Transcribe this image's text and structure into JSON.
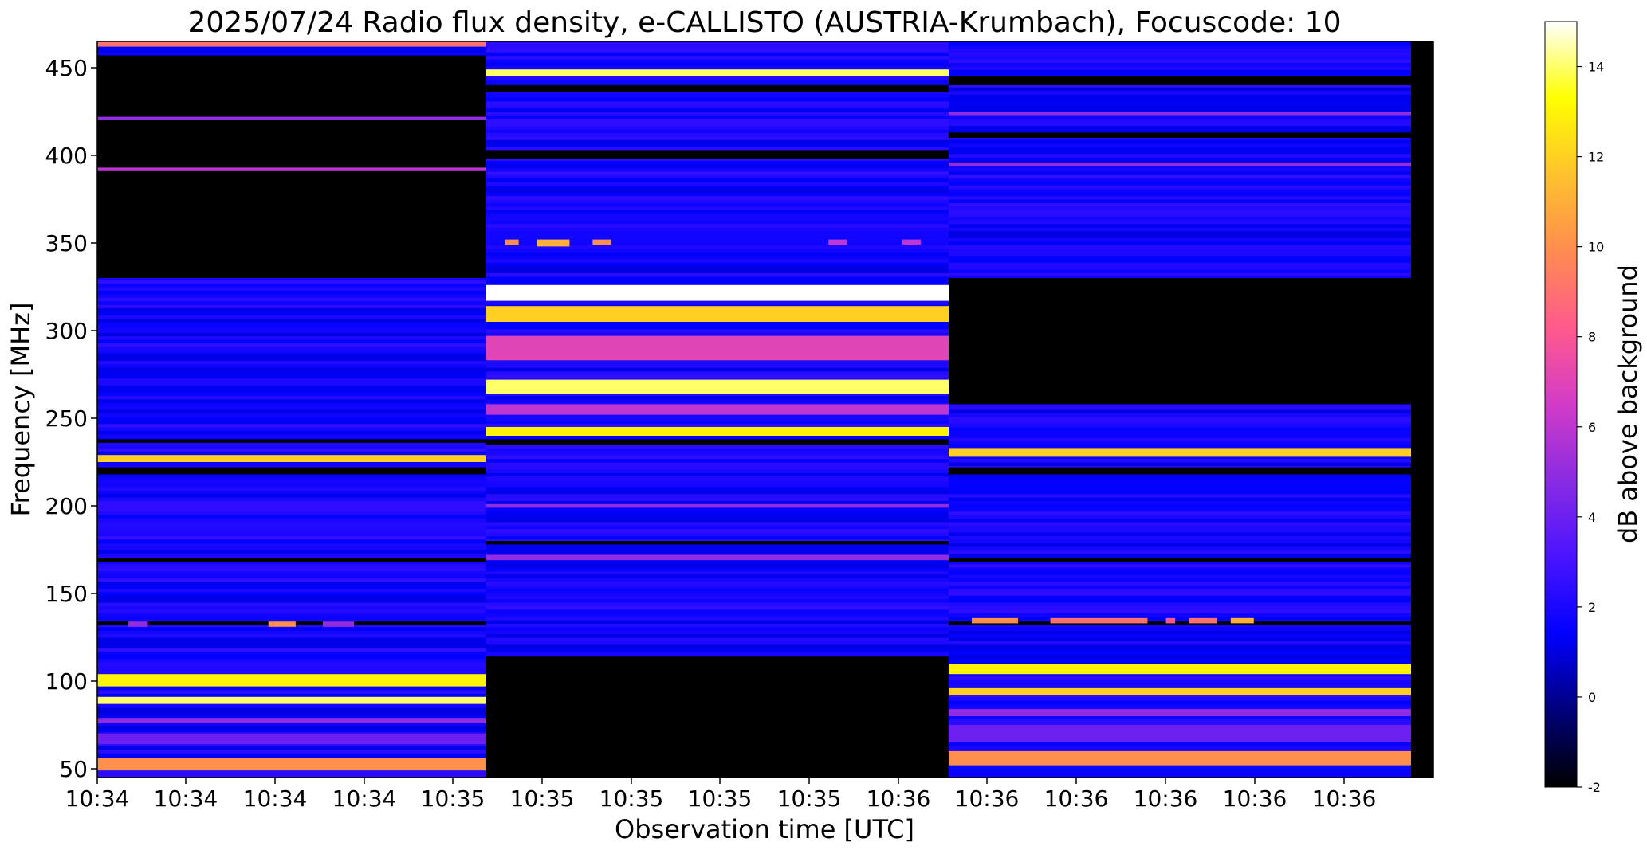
{
  "chart_data": {
    "type": "heatmap",
    "title": "2025/07/24  Radio flux density, e-CALLISTO (AUSTRIA-Krumbach), Focuscode: 10",
    "xlabel": "Observation time [UTC]",
    "ylabel": "Frequency [MHz]",
    "ylim": [
      45,
      465
    ],
    "yticks": [
      50,
      100,
      150,
      200,
      250,
      300,
      350,
      400,
      450
    ],
    "xtick_labels": [
      "10:34",
      "10:34",
      "10:34",
      "10:34",
      "10:35",
      "10:35",
      "10:35",
      "10:35",
      "10:35",
      "10:36",
      "10:36",
      "10:36",
      "10:36",
      "10:36",
      "10:36"
    ],
    "colorbar": {
      "label": "dB above background",
      "range": [
        -2,
        15
      ],
      "ticks": [
        -2,
        0,
        2,
        4,
        6,
        8,
        10,
        12,
        14
      ],
      "colormap": "gnuplot2",
      "stops": [
        "#000000",
        "#00007a",
        "#0000ff",
        "#4a14ff",
        "#8a2be2",
        "#d23cc8",
        "#ff5a8c",
        "#ff8c50",
        "#ffc22e",
        "#ffff00",
        "#ffffff"
      ]
    },
    "panels": [
      {
        "dark_bands": [
          [
            330,
            457
          ],
          [
            447,
            450
          ],
          [
            236,
            238
          ],
          [
            218,
            222
          ],
          [
            168,
            170
          ],
          [
            132,
            134
          ]
        ],
        "bright_bands": [
          {
            "freq": [
              97,
              104
            ],
            "db": 13
          },
          {
            "freq": [
              87,
              91
            ],
            "db": 14
          },
          {
            "freq": [
              49,
              56
            ],
            "db": 10
          },
          {
            "freq": [
              225,
              229
            ],
            "db": 12
          },
          {
            "freq": [
              462,
              465
            ],
            "db": 9
          },
          {
            "freq": [
              420,
              422
            ],
            "db": 5
          },
          {
            "freq": [
              391,
              393
            ],
            "db": 6
          },
          {
            "freq": [
              76,
              79
            ],
            "db": 5
          },
          {
            "freq": [
              64,
              70
            ],
            "db": 4
          }
        ]
      },
      {
        "dark_bands": [
          [
            45,
            114
          ],
          [
            398,
            403
          ],
          [
            436,
            440
          ],
          [
            178,
            180
          ],
          [
            235,
            238
          ]
        ],
        "bright_bands": [
          {
            "freq": [
              317,
              326
            ],
            "db": 15
          },
          {
            "freq": [
              305,
              314
            ],
            "db": 12
          },
          {
            "freq": [
              264,
              272
            ],
            "db": 14
          },
          {
            "freq": [
              240,
              245
            ],
            "db": 13
          },
          {
            "freq": [
              445,
              449
            ],
            "db": 14
          },
          {
            "freq": [
              283,
              297
            ],
            "db": 7
          },
          {
            "freq": [
              252,
              258
            ],
            "db": 6
          },
          {
            "freq": [
              199,
              201
            ],
            "db": 5
          },
          {
            "freq": [
              169,
              172
            ],
            "db": 5
          }
        ]
      },
      {
        "dark_bands": [
          [
            258,
            330
          ],
          [
            410,
            413
          ],
          [
            440,
            445
          ],
          [
            218,
            222
          ],
          [
            168,
            170
          ],
          [
            132,
            134
          ]
        ],
        "bright_bands": [
          {
            "freq": [
              104,
              110
            ],
            "db": 13
          },
          {
            "freq": [
              92,
              96
            ],
            "db": 12
          },
          {
            "freq": [
              52,
              60
            ],
            "db": 10
          },
          {
            "freq": [
              228,
              233
            ],
            "db": 12
          },
          {
            "freq": [
              423,
              425
            ],
            "db": 5
          },
          {
            "freq": [
              394,
              396
            ],
            "db": 5
          },
          {
            "freq": [
              80,
              84
            ],
            "db": 5
          },
          {
            "freq": [
              65,
              75
            ],
            "db": 4
          }
        ]
      }
    ],
    "bursts": [
      {
        "panel": 0,
        "t": [
          0.08,
          0.13
        ],
        "freq": [
          131,
          134
        ],
        "db": 5
      },
      {
        "panel": 0,
        "t": [
          0.44,
          0.51
        ],
        "freq": [
          131,
          134
        ],
        "db": 10
      },
      {
        "panel": 0,
        "t": [
          0.58,
          0.66
        ],
        "freq": [
          131,
          134
        ],
        "db": 5
      },
      {
        "panel": 1,
        "t": [
          0.04,
          0.07
        ],
        "freq": [
          349,
          352
        ],
        "db": 10
      },
      {
        "panel": 1,
        "t": [
          0.11,
          0.18
        ],
        "freq": [
          348,
          352
        ],
        "db": 11
      },
      {
        "panel": 1,
        "t": [
          0.23,
          0.27
        ],
        "freq": [
          349,
          352
        ],
        "db": 10
      },
      {
        "panel": 1,
        "t": [
          0.74,
          0.78
        ],
        "freq": [
          349,
          352
        ],
        "db": 6
      },
      {
        "panel": 1,
        "t": [
          0.9,
          0.94
        ],
        "freq": [
          349,
          352
        ],
        "db": 6
      },
      {
        "panel": 2,
        "t": [
          0.05,
          0.15
        ],
        "freq": [
          133,
          136
        ],
        "db": 10
      },
      {
        "panel": 2,
        "t": [
          0.22,
          0.43
        ],
        "freq": [
          133,
          136
        ],
        "db": 9
      },
      {
        "panel": 2,
        "t": [
          0.47,
          0.49
        ],
        "freq": [
          133,
          136
        ],
        "db": 8
      },
      {
        "panel": 2,
        "t": [
          0.52,
          0.58
        ],
        "freq": [
          133,
          136
        ],
        "db": 9
      },
      {
        "panel": 2,
        "t": [
          0.61,
          0.66
        ],
        "freq": [
          133,
          136
        ],
        "db": 11
      }
    ]
  }
}
